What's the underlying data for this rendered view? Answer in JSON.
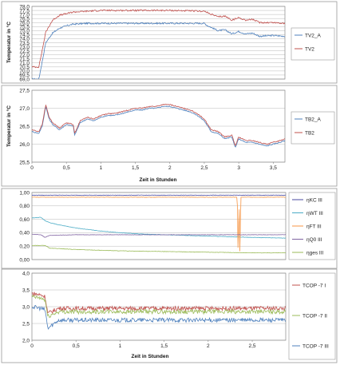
{
  "chart_data": [
    {
      "type": "line",
      "ylabel": "Temperatur in °C",
      "ylim": [
        69.0,
        78.0
      ],
      "y_ticks": [
        "69,0",
        "69,5",
        "70,0",
        "70,5",
        "71,0",
        "71,5",
        "72,0",
        "72,5",
        "73,0",
        "73,5",
        "74,0",
        "74,5",
        "75,0",
        "75,5",
        "76,0",
        "76,5",
        "77,0",
        "77,5",
        "78,0"
      ],
      "xlim": [
        0,
        3.67
      ],
      "grid": "horizontal",
      "legend_position": "right",
      "series": [
        {
          "name": "TV2_A",
          "color": "#4f81bd",
          "x": [
            0,
            0.1,
            0.15,
            0.2,
            0.3,
            0.4,
            0.5,
            0.6,
            0.8,
            1.0,
            1.5,
            2.0,
            2.5,
            2.55,
            2.7,
            2.8,
            2.9,
            3.0,
            3.1,
            3.2,
            3.3,
            3.5,
            3.67
          ],
          "y": [
            69.0,
            69.0,
            71.2,
            73.5,
            74.7,
            75.3,
            75.6,
            75.8,
            75.9,
            75.9,
            75.9,
            75.9,
            75.9,
            75.6,
            75.0,
            75.1,
            74.6,
            74.9,
            74.6,
            74.7,
            74.3,
            74.4,
            74.3
          ]
        },
        {
          "name": "TV2",
          "color": "#c0504d",
          "x": [
            0,
            0.1,
            0.15,
            0.2,
            0.3,
            0.4,
            0.5,
            0.6,
            0.8,
            1.0,
            1.5,
            2.0,
            2.5,
            2.55,
            2.7,
            2.8,
            2.9,
            3.0,
            3.1,
            3.2,
            3.3,
            3.5,
            3.67
          ],
          "y": [
            70.5,
            70.5,
            72.6,
            74.8,
            76.3,
            76.9,
            77.1,
            77.3,
            77.4,
            77.5,
            77.5,
            77.5,
            77.4,
            77.2,
            76.7,
            76.8,
            76.3,
            76.6,
            76.3,
            76.4,
            76.0,
            76.0,
            75.9
          ]
        }
      ]
    },
    {
      "type": "line",
      "ylabel": "Temperatur in °C",
      "xlabel": "Zeit in Stunden",
      "ylim": [
        25.5,
        27.5
      ],
      "y_ticks": [
        "25,5",
        "26,0",
        "26,5",
        "27,0",
        "27,5"
      ],
      "xlim": [
        0,
        3.67
      ],
      "x_ticks": [
        "0",
        "0,5",
        "1",
        "1,5",
        "2",
        "2,5",
        "3",
        "3,5"
      ],
      "grid": "horizontal",
      "legend_position": "right",
      "series": [
        {
          "name": "TB2_A",
          "color": "#4f81bd",
          "x": [
            0,
            0.1,
            0.15,
            0.2,
            0.25,
            0.3,
            0.4,
            0.5,
            0.6,
            0.62,
            0.7,
            0.8,
            0.9,
            1.0,
            1.1,
            1.2,
            1.3,
            1.4,
            1.5,
            1.6,
            1.7,
            1.8,
            1.9,
            2.0,
            2.1,
            2.2,
            2.3,
            2.4,
            2.5,
            2.6,
            2.7,
            2.8,
            2.9,
            2.95,
            3.0,
            3.1,
            3.2,
            3.3,
            3.4,
            3.5,
            3.6,
            3.67
          ],
          "y": [
            26.35,
            26.3,
            26.5,
            27.05,
            26.7,
            26.55,
            26.4,
            26.55,
            26.5,
            26.25,
            26.6,
            26.7,
            26.65,
            26.75,
            26.8,
            26.8,
            26.85,
            26.9,
            26.95,
            26.95,
            27.0,
            27.0,
            27.05,
            27.05,
            27.0,
            26.95,
            26.9,
            26.8,
            26.65,
            26.35,
            26.3,
            26.15,
            26.2,
            25.9,
            26.15,
            26.05,
            26.05,
            26.0,
            25.95,
            26.0,
            26.05,
            26.1
          ]
        },
        {
          "name": "TB2",
          "color": "#c0504d",
          "x": [
            0,
            0.1,
            0.15,
            0.2,
            0.25,
            0.3,
            0.4,
            0.5,
            0.6,
            0.62,
            0.7,
            0.8,
            0.9,
            1.0,
            1.1,
            1.2,
            1.3,
            1.4,
            1.5,
            1.6,
            1.7,
            1.8,
            1.9,
            2.0,
            2.1,
            2.2,
            2.3,
            2.4,
            2.5,
            2.6,
            2.7,
            2.8,
            2.9,
            2.95,
            3.0,
            3.1,
            3.2,
            3.3,
            3.4,
            3.5,
            3.6,
            3.67
          ],
          "y": [
            26.4,
            26.35,
            26.55,
            27.1,
            26.75,
            26.6,
            26.45,
            26.6,
            26.55,
            26.3,
            26.65,
            26.75,
            26.7,
            26.8,
            26.85,
            26.85,
            26.9,
            26.95,
            27.0,
            27.0,
            27.05,
            27.05,
            27.1,
            27.1,
            27.05,
            27.0,
            26.95,
            26.85,
            26.7,
            26.4,
            26.35,
            26.2,
            26.25,
            25.95,
            26.2,
            26.1,
            26.1,
            26.05,
            26.0,
            26.05,
            26.1,
            26.15
          ]
        }
      ]
    },
    {
      "type": "line",
      "ylim": [
        0.0,
        1.0
      ],
      "y_ticks": [
        "0,00",
        "0,20",
        "0,40",
        "0,60",
        "0,80",
        "1,00"
      ],
      "xlim": [
        0,
        2.88
      ],
      "grid": "horizontal",
      "legend_position": "right",
      "series": [
        {
          "name": "ηKC III",
          "color": "#4a4aa0",
          "x": [
            0,
            0.5,
            1.0,
            1.5,
            2.0,
            2.5,
            2.88
          ],
          "y": [
            0.96,
            0.96,
            0.96,
            0.96,
            0.96,
            0.96,
            0.96
          ]
        },
        {
          "name": "ηWT III",
          "color": "#4bacc6",
          "x": [
            0,
            0.1,
            0.15,
            0.2,
            0.3,
            0.5,
            0.75,
            1.0,
            1.25,
            1.5,
            2.0,
            2.5,
            2.88
          ],
          "y": [
            0.62,
            0.63,
            0.58,
            0.55,
            0.52,
            0.47,
            0.43,
            0.4,
            0.38,
            0.37,
            0.35,
            0.33,
            0.32
          ]
        },
        {
          "name": "ηFT III",
          "color": "#f79646",
          "x": [
            0,
            0.5,
            1.0,
            1.5,
            2.0,
            2.33,
            2.34,
            2.35,
            2.36,
            2.37,
            2.5,
            2.88
          ],
          "y": [
            0.93,
            0.93,
            0.93,
            0.93,
            0.93,
            0.93,
            0.02,
            0.93,
            0.02,
            0.93,
            0.93,
            0.93
          ]
        },
        {
          "name": "ηQ0 III",
          "color": "#8064a2",
          "x": [
            0,
            0.1,
            0.15,
            0.2,
            0.5,
            1.0,
            1.5,
            2.0,
            2.5,
            2.88
          ],
          "y": [
            0.38,
            0.37,
            0.33,
            0.36,
            0.37,
            0.37,
            0.37,
            0.37,
            0.37,
            0.37
          ]
        },
        {
          "name": "ηges III",
          "color": "#9bbb59",
          "x": [
            0,
            0.15,
            0.2,
            0.5,
            1.0,
            1.5,
            2.0,
            2.5,
            2.88
          ],
          "y": [
            0.21,
            0.21,
            0.17,
            0.15,
            0.13,
            0.12,
            0.11,
            0.1,
            0.1
          ]
        }
      ]
    },
    {
      "type": "line",
      "xlabel": "Zeit in  Stunden",
      "ylim": [
        2.0,
        4.0
      ],
      "y_ticks": [
        "2,0",
        "2,5",
        "3,0",
        "3,5",
        "4,0"
      ],
      "xlim": [
        0,
        2.88
      ],
      "x_ticks": [
        "0",
        "0,5",
        "1",
        "1,5",
        "2",
        "2,5"
      ],
      "grid": "horizontal",
      "legend_position": "right",
      "series": [
        {
          "name": "TCOP -7 I",
          "color": "#c0504d",
          "x": [
            0,
            0.1,
            0.15,
            0.18,
            0.3,
            0.5,
            1.0,
            1.5,
            2.0,
            2.5,
            2.88
          ],
          "y": [
            3.4,
            3.35,
            3.3,
            2.8,
            2.95,
            2.95,
            2.95,
            2.95,
            2.95,
            2.95,
            2.95
          ]
        },
        {
          "name": "TCOP -7 II",
          "color": "#9bbb59",
          "x": [
            0,
            0.1,
            0.15,
            0.18,
            0.3,
            0.5,
            1.0,
            1.5,
            2.0,
            2.5,
            2.88
          ],
          "y": [
            3.3,
            3.25,
            3.2,
            2.7,
            2.85,
            2.85,
            2.85,
            2.85,
            2.85,
            2.85,
            2.85
          ]
        },
        {
          "name": "TCOP -7 III",
          "color": "#4f81bd",
          "x": [
            0,
            0.1,
            0.15,
            0.18,
            0.3,
            0.5,
            1.0,
            1.5,
            2.0,
            2.5,
            2.88
          ],
          "y": [
            3.0,
            2.95,
            2.9,
            2.35,
            2.6,
            2.6,
            2.6,
            2.6,
            2.6,
            2.6,
            2.6
          ]
        }
      ]
    }
  ]
}
